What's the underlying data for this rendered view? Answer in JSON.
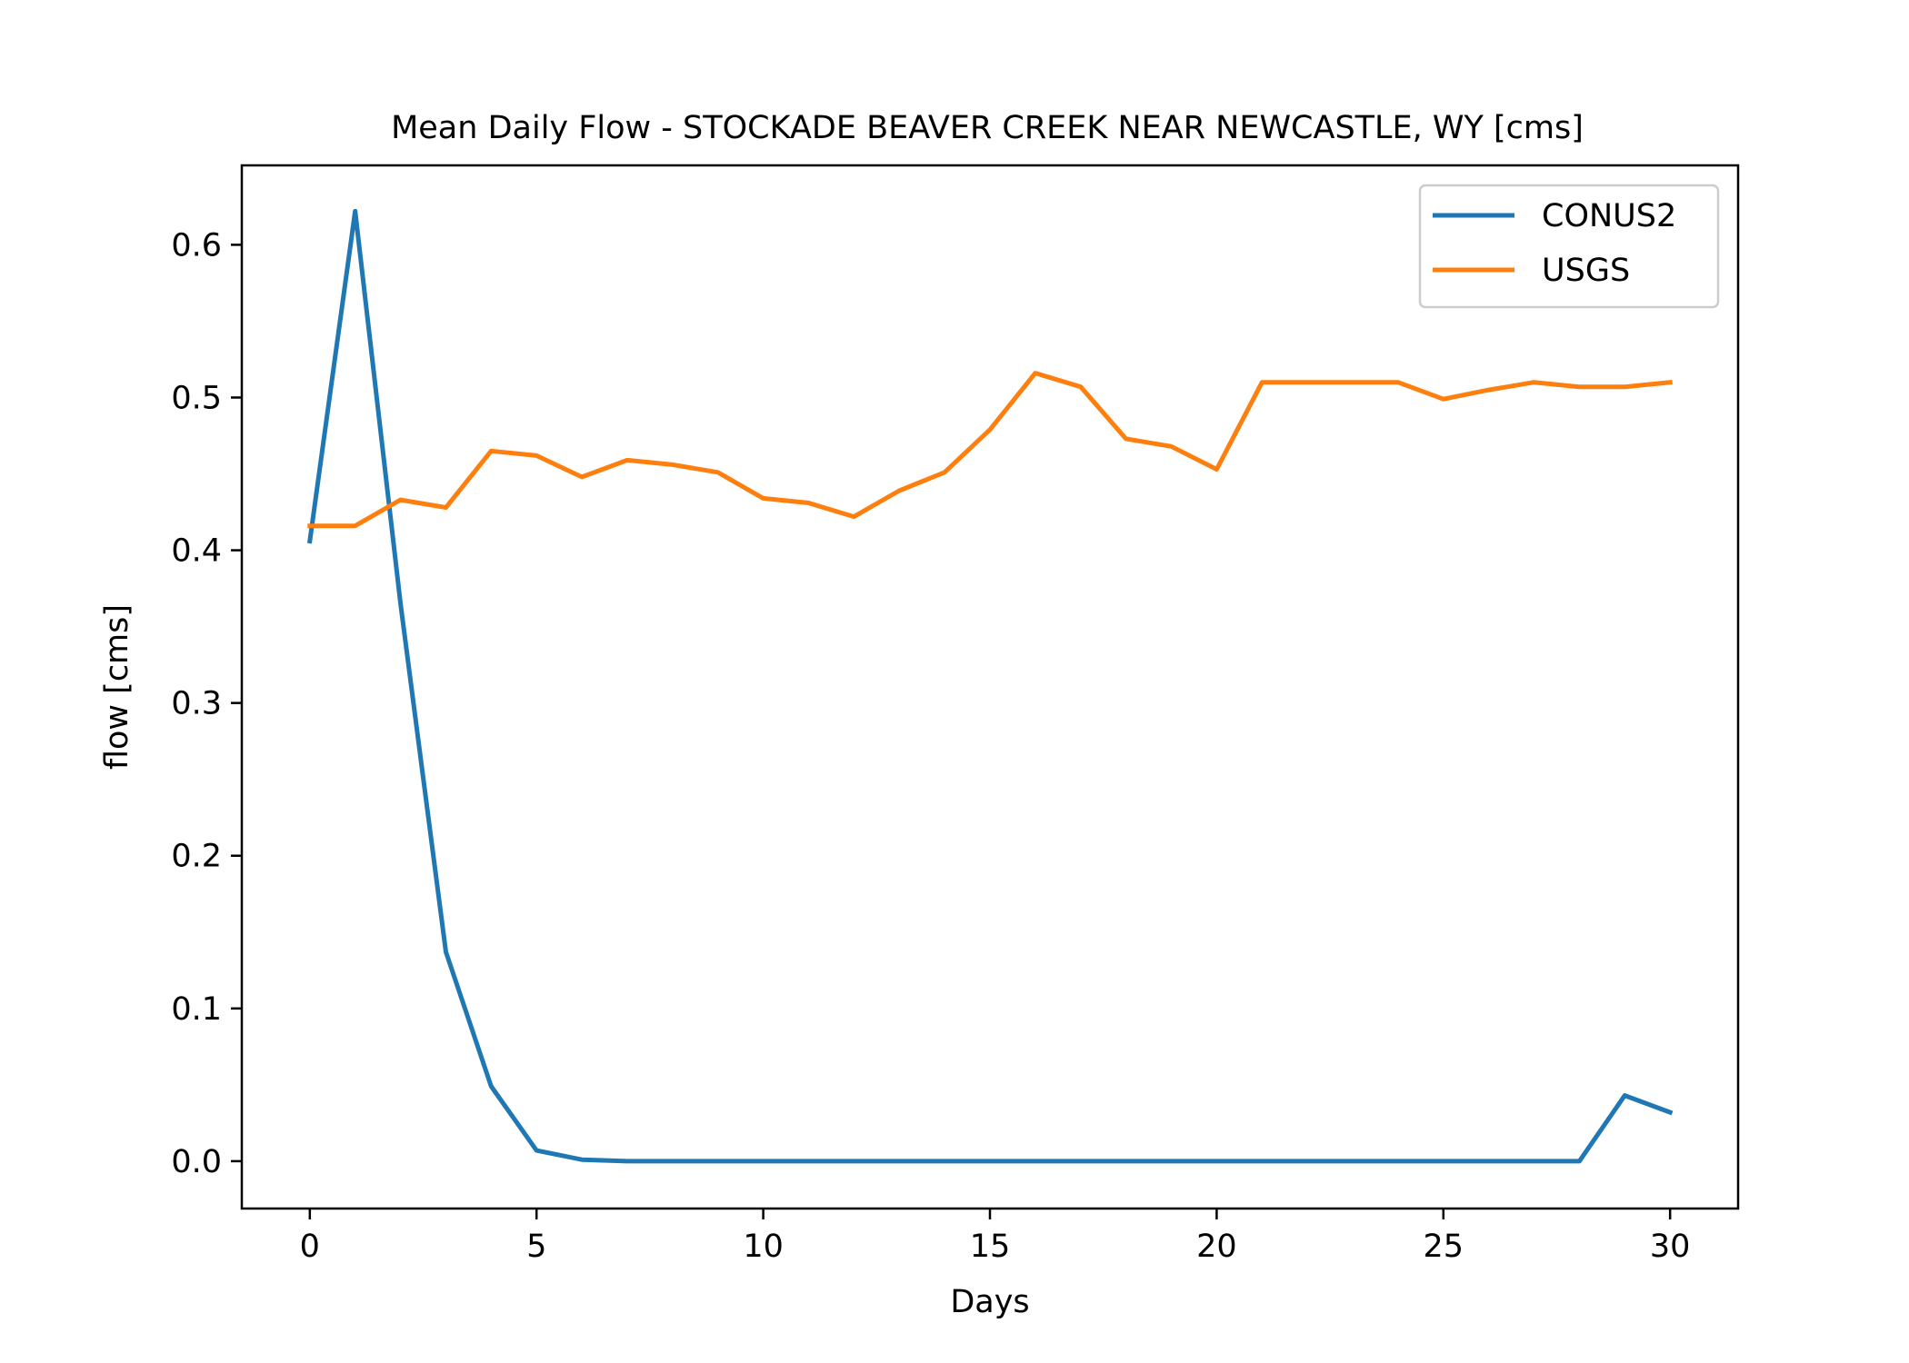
{
  "chart_data": {
    "type": "line",
    "title": "Mean Daily Flow - STOCKADE BEAVER CREEK NEAR NEWCASTLE, WY [cms]",
    "xlabel": "Days",
    "ylabel": "flow [cms]",
    "xlim": [
      -1.5,
      31.5
    ],
    "ylim": [
      -0.031,
      0.652
    ],
    "xticks": [
      0,
      5,
      10,
      15,
      20,
      25,
      30
    ],
    "yticks": [
      0.0,
      0.1,
      0.2,
      0.3,
      0.4,
      0.5,
      0.6
    ],
    "ytick_labels": [
      "0.0",
      "0.1",
      "0.2",
      "0.3",
      "0.4",
      "0.5",
      "0.6"
    ],
    "grid": false,
    "legend_position": "top-right",
    "x": [
      0,
      1,
      2,
      3,
      4,
      5,
      6,
      7,
      8,
      9,
      10,
      11,
      12,
      13,
      14,
      15,
      16,
      17,
      18,
      19,
      20,
      21,
      22,
      23,
      24,
      25,
      26,
      27,
      28,
      29,
      30
    ],
    "series": [
      {
        "name": "CONUS2",
        "color": "#1f77b4",
        "values": [
          0.406,
          0.622,
          0.365,
          0.137,
          0.049,
          0.007,
          0.001,
          0.0,
          0.0,
          0.0,
          0.0,
          0.0,
          0.0,
          0.0,
          0.0,
          0.0,
          0.0,
          0.0,
          0.0,
          0.0,
          0.0,
          0.0,
          0.0,
          0.0,
          0.0,
          0.0,
          0.0,
          0.0,
          0.0,
          0.043,
          0.032
        ]
      },
      {
        "name": "USGS",
        "color": "#ff7f0e",
        "values": [
          0.416,
          0.416,
          0.433,
          0.428,
          0.465,
          0.462,
          0.448,
          0.459,
          0.456,
          0.451,
          0.434,
          0.431,
          0.422,
          0.439,
          0.451,
          0.479,
          0.516,
          0.507,
          0.473,
          0.468,
          0.453,
          0.51,
          0.51,
          0.51,
          0.51,
          0.499,
          0.505,
          0.51,
          0.507,
          0.507,
          0.51
        ]
      }
    ]
  }
}
